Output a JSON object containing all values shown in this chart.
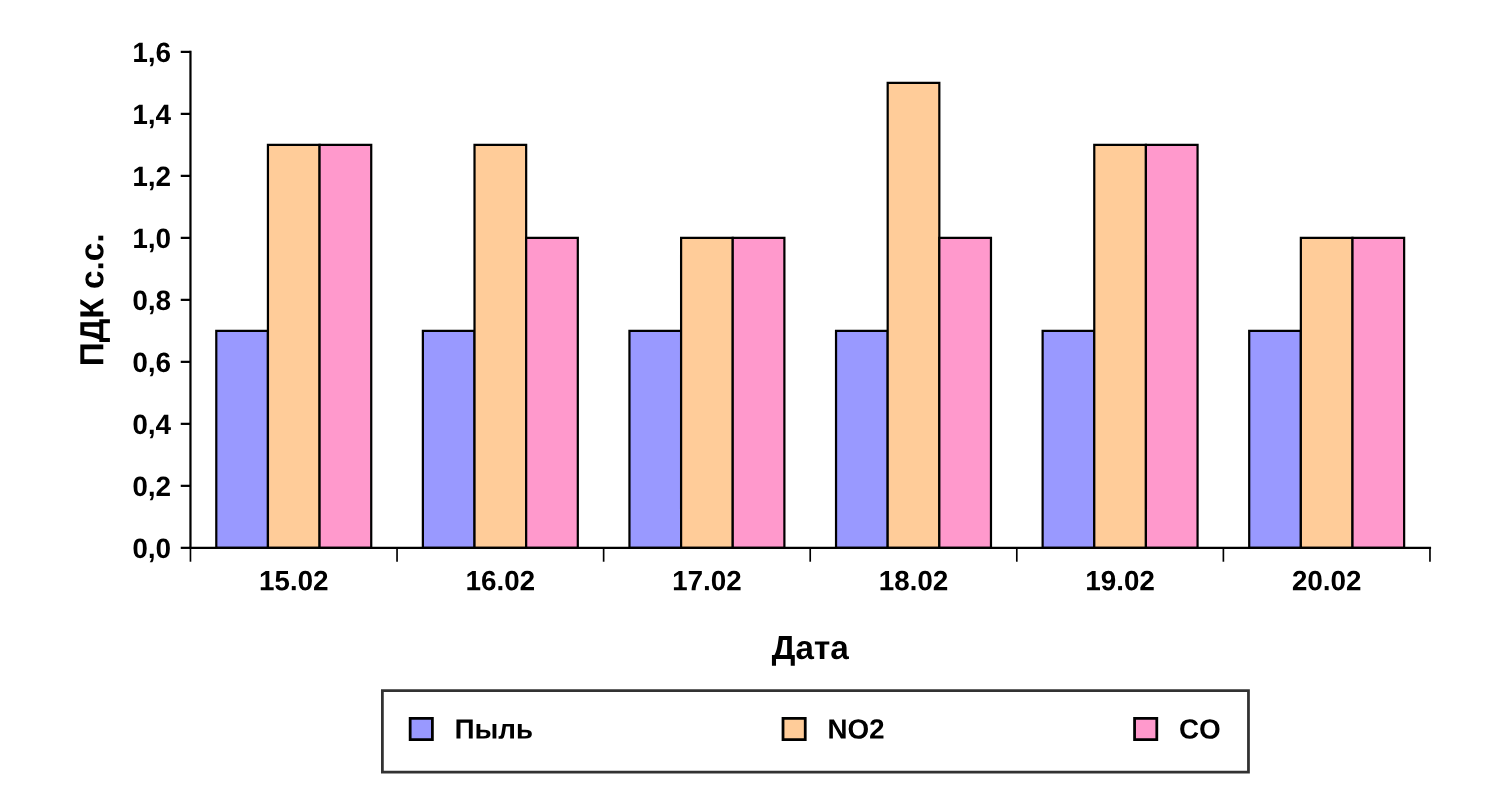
{
  "chart_data": {
    "type": "bar",
    "xlabel": "Дата",
    "ylabel": "ПДК с.с.",
    "categories": [
      "15.02",
      "16.02",
      "17.02",
      "18.02",
      "19.02",
      "20.02"
    ],
    "series": [
      {
        "name": "Пыль",
        "color": "#9999ff",
        "values": [
          0.7,
          0.7,
          0.7,
          0.7,
          0.7,
          0.7
        ]
      },
      {
        "name": "NO2",
        "color": "#ffcc99",
        "values": [
          1.3,
          1.3,
          1.0,
          1.5,
          1.3,
          1.0
        ]
      },
      {
        "name": "CO",
        "color": "#ff99cc",
        "values": [
          1.3,
          1.0,
          1.0,
          1.0,
          1.3,
          1.0
        ]
      }
    ],
    "ylim": [
      0,
      1.6
    ],
    "yticks": [
      {
        "value": 0,
        "label": "0,0"
      },
      {
        "value": 0.2,
        "label": "0,2"
      },
      {
        "value": 0.4,
        "label": "0,4"
      },
      {
        "value": 0.6,
        "label": "0,6"
      },
      {
        "value": 0.8,
        "label": "0,8"
      },
      {
        "value": 1.0,
        "label": "1,0"
      },
      {
        "value": 1.2,
        "label": "1,2"
      },
      {
        "value": 1.4,
        "label": "1,4"
      },
      {
        "value": 1.6,
        "label": "1,6"
      }
    ],
    "grid": false,
    "legend": "bottom"
  }
}
